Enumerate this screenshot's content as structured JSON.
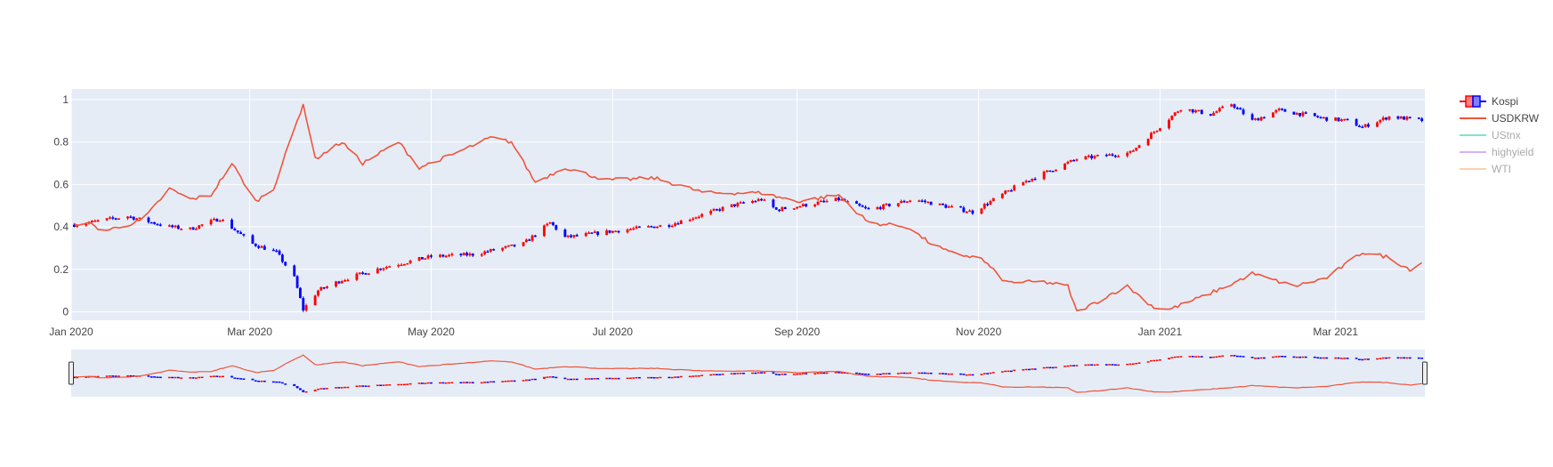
{
  "chart_data": {
    "type": "candlestick+line",
    "title": "",
    "xlabel": "",
    "ylabel": "",
    "x_range": [
      "2020-01-01",
      "2021-03-31"
    ],
    "ylim": [
      -0.04,
      1.05
    ],
    "grid": true,
    "legend_position": "top-right",
    "x_ticks": [
      {
        "date": "2020-01-01",
        "label": "Jan 2020"
      },
      {
        "date": "2020-03-01",
        "label": "Mar 2020"
      },
      {
        "date": "2020-05-01",
        "label": "May 2020"
      },
      {
        "date": "2020-07-01",
        "label": "Jul 2020"
      },
      {
        "date": "2020-09-01",
        "label": "Sep 2020"
      },
      {
        "date": "2020-11-01",
        "label": "Nov 2020"
      },
      {
        "date": "2021-01-01",
        "label": "Jan 2021"
      },
      {
        "date": "2021-03-01",
        "label": "Mar 2021"
      }
    ],
    "y_ticks": [
      {
        "value": 0,
        "label": "0"
      },
      {
        "value": 0.2,
        "label": "0.2"
      },
      {
        "value": 0.4,
        "label": "0.4"
      },
      {
        "value": 0.6,
        "label": "0.6"
      },
      {
        "value": 0.8,
        "label": "0.8"
      },
      {
        "value": 1,
        "label": "1"
      }
    ],
    "colors": {
      "plot_bg": "#e5ecf6",
      "grid": "#ffffff",
      "increasing": "#ff0000",
      "decreasing": "#0000ff",
      "usdkrw": "#ef553b",
      "ustnx": "#00cc96",
      "highyield": "#ab63fa",
      "wti": "#ffa15a"
    },
    "legend": [
      {
        "name": "Kospi",
        "kind": "candle",
        "visible": true
      },
      {
        "name": "USDKRW",
        "kind": "line",
        "color": "#ef553b",
        "visible": true
      },
      {
        "name": "UStnx",
        "kind": "line",
        "color": "#00cc96",
        "visible": false
      },
      {
        "name": "highyield",
        "kind": "line",
        "color": "#ab63fa",
        "visible": false
      },
      {
        "name": "WTI",
        "kind": "line",
        "color": "#ffa15a",
        "visible": false
      }
    ],
    "kospi_anchors": [
      [
        "2020-01-02",
        0.41
      ],
      [
        "2020-01-20",
        0.45
      ],
      [
        "2020-02-03",
        0.4
      ],
      [
        "2020-02-10",
        0.39
      ],
      [
        "2020-02-20",
        0.44
      ],
      [
        "2020-03-02",
        0.32
      ],
      [
        "2020-03-10",
        0.28
      ],
      [
        "2020-03-16",
        0.16
      ],
      [
        "2020-03-19",
        0.01
      ],
      [
        "2020-03-24",
        0.1
      ],
      [
        "2020-04-01",
        0.15
      ],
      [
        "2020-04-15",
        0.21
      ],
      [
        "2020-05-01",
        0.26
      ],
      [
        "2020-05-15",
        0.27
      ],
      [
        "2020-06-01",
        0.32
      ],
      [
        "2020-06-10",
        0.42
      ],
      [
        "2020-06-15",
        0.35
      ],
      [
        "2020-07-01",
        0.38
      ],
      [
        "2020-07-20",
        0.41
      ],
      [
        "2020-08-10",
        0.5
      ],
      [
        "2020-08-20",
        0.53
      ],
      [
        "2020-08-25",
        0.48
      ],
      [
        "2020-09-15",
        0.53
      ],
      [
        "2020-09-25",
        0.48
      ],
      [
        "2020-10-10",
        0.53
      ],
      [
        "2020-10-30",
        0.47
      ],
      [
        "2020-11-16",
        0.61
      ],
      [
        "2020-12-04",
        0.72
      ],
      [
        "2020-12-22",
        0.75
      ],
      [
        "2021-01-08",
        0.96
      ],
      [
        "2021-01-18",
        0.93
      ],
      [
        "2021-01-25",
        0.98
      ],
      [
        "2021-02-01",
        0.9
      ],
      [
        "2021-02-10",
        0.95
      ],
      [
        "2021-02-26",
        0.91
      ],
      [
        "2021-03-05",
        0.9
      ],
      [
        "2021-03-10",
        0.87
      ],
      [
        "2021-03-19",
        0.92
      ],
      [
        "2021-03-31",
        0.9
      ]
    ],
    "usdkrw_anchors": [
      [
        "2020-01-01",
        0.4
      ],
      [
        "2020-01-05",
        0.43
      ],
      [
        "2020-01-12",
        0.38
      ],
      [
        "2020-01-25",
        0.43
      ],
      [
        "2020-02-03",
        0.58
      ],
      [
        "2020-02-10",
        0.53
      ],
      [
        "2020-02-17",
        0.55
      ],
      [
        "2020-02-24",
        0.7
      ],
      [
        "2020-03-03",
        0.52
      ],
      [
        "2020-03-09",
        0.58
      ],
      [
        "2020-03-19",
        0.98
      ],
      [
        "2020-03-23",
        0.72
      ],
      [
        "2020-04-01",
        0.8
      ],
      [
        "2020-04-08",
        0.7
      ],
      [
        "2020-04-20",
        0.8
      ],
      [
        "2020-04-27",
        0.68
      ],
      [
        "2020-05-08",
        0.74
      ],
      [
        "2020-05-21",
        0.82
      ],
      [
        "2020-05-28",
        0.8
      ],
      [
        "2020-06-05",
        0.61
      ],
      [
        "2020-06-15",
        0.68
      ],
      [
        "2020-06-29",
        0.62
      ],
      [
        "2020-07-15",
        0.63
      ],
      [
        "2020-08-01",
        0.56
      ],
      [
        "2020-08-20",
        0.56
      ],
      [
        "2020-09-01",
        0.52
      ],
      [
        "2020-09-15",
        0.55
      ],
      [
        "2020-09-25",
        0.42
      ],
      [
        "2020-10-08",
        0.4
      ],
      [
        "2020-10-15",
        0.33
      ],
      [
        "2020-10-22",
        0.28
      ],
      [
        "2020-11-02",
        0.25
      ],
      [
        "2020-11-10",
        0.14
      ],
      [
        "2020-11-23",
        0.14
      ],
      [
        "2020-12-01",
        0.12
      ],
      [
        "2020-12-04",
        0.0
      ],
      [
        "2020-12-10",
        0.04
      ],
      [
        "2020-12-15",
        0.08
      ],
      [
        "2020-12-21",
        0.12
      ],
      [
        "2020-12-30",
        0.02
      ],
      [
        "2021-01-04",
        0.01
      ],
      [
        "2021-01-15",
        0.07
      ],
      [
        "2021-01-25",
        0.13
      ],
      [
        "2021-02-01",
        0.18
      ],
      [
        "2021-02-15",
        0.12
      ],
      [
        "2021-02-26",
        0.16
      ],
      [
        "2021-03-10",
        0.28
      ],
      [
        "2021-03-18",
        0.26
      ],
      [
        "2021-03-26",
        0.2
      ],
      [
        "2021-03-31",
        0.24
      ]
    ]
  }
}
